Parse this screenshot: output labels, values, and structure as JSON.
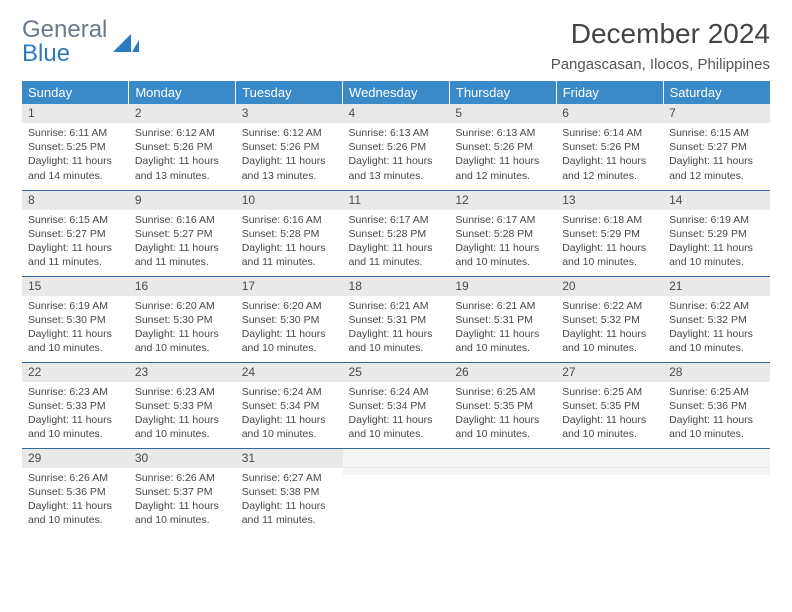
{
  "brand": {
    "word1": "General",
    "word2": "Blue",
    "sail_color": "#2b7bbf",
    "text_gray": "#6b7a8a"
  },
  "title": "December 2024",
  "location": "Pangascasan, Ilocos, Philippines",
  "colors": {
    "header_bg": "#3a8ac9",
    "row_divider": "#336699",
    "daynum_bg": "#e9e9e9"
  },
  "weekdays": [
    "Sunday",
    "Monday",
    "Tuesday",
    "Wednesday",
    "Thursday",
    "Friday",
    "Saturday"
  ],
  "weeks": [
    [
      {
        "n": "1",
        "sr": "6:11 AM",
        "ss": "5:25 PM",
        "dl": "11 hours and 14 minutes."
      },
      {
        "n": "2",
        "sr": "6:12 AM",
        "ss": "5:26 PM",
        "dl": "11 hours and 13 minutes."
      },
      {
        "n": "3",
        "sr": "6:12 AM",
        "ss": "5:26 PM",
        "dl": "11 hours and 13 minutes."
      },
      {
        "n": "4",
        "sr": "6:13 AM",
        "ss": "5:26 PM",
        "dl": "11 hours and 13 minutes."
      },
      {
        "n": "5",
        "sr": "6:13 AM",
        "ss": "5:26 PM",
        "dl": "11 hours and 12 minutes."
      },
      {
        "n": "6",
        "sr": "6:14 AM",
        "ss": "5:26 PM",
        "dl": "11 hours and 12 minutes."
      },
      {
        "n": "7",
        "sr": "6:15 AM",
        "ss": "5:27 PM",
        "dl": "11 hours and 12 minutes."
      }
    ],
    [
      {
        "n": "8",
        "sr": "6:15 AM",
        "ss": "5:27 PM",
        "dl": "11 hours and 11 minutes."
      },
      {
        "n": "9",
        "sr": "6:16 AM",
        "ss": "5:27 PM",
        "dl": "11 hours and 11 minutes."
      },
      {
        "n": "10",
        "sr": "6:16 AM",
        "ss": "5:28 PM",
        "dl": "11 hours and 11 minutes."
      },
      {
        "n": "11",
        "sr": "6:17 AM",
        "ss": "5:28 PM",
        "dl": "11 hours and 11 minutes."
      },
      {
        "n": "12",
        "sr": "6:17 AM",
        "ss": "5:28 PM",
        "dl": "11 hours and 10 minutes."
      },
      {
        "n": "13",
        "sr": "6:18 AM",
        "ss": "5:29 PM",
        "dl": "11 hours and 10 minutes."
      },
      {
        "n": "14",
        "sr": "6:19 AM",
        "ss": "5:29 PM",
        "dl": "11 hours and 10 minutes."
      }
    ],
    [
      {
        "n": "15",
        "sr": "6:19 AM",
        "ss": "5:30 PM",
        "dl": "11 hours and 10 minutes."
      },
      {
        "n": "16",
        "sr": "6:20 AM",
        "ss": "5:30 PM",
        "dl": "11 hours and 10 minutes."
      },
      {
        "n": "17",
        "sr": "6:20 AM",
        "ss": "5:30 PM",
        "dl": "11 hours and 10 minutes."
      },
      {
        "n": "18",
        "sr": "6:21 AM",
        "ss": "5:31 PM",
        "dl": "11 hours and 10 minutes."
      },
      {
        "n": "19",
        "sr": "6:21 AM",
        "ss": "5:31 PM",
        "dl": "11 hours and 10 minutes."
      },
      {
        "n": "20",
        "sr": "6:22 AM",
        "ss": "5:32 PM",
        "dl": "11 hours and 10 minutes."
      },
      {
        "n": "21",
        "sr": "6:22 AM",
        "ss": "5:32 PM",
        "dl": "11 hours and 10 minutes."
      }
    ],
    [
      {
        "n": "22",
        "sr": "6:23 AM",
        "ss": "5:33 PM",
        "dl": "11 hours and 10 minutes."
      },
      {
        "n": "23",
        "sr": "6:23 AM",
        "ss": "5:33 PM",
        "dl": "11 hours and 10 minutes."
      },
      {
        "n": "24",
        "sr": "6:24 AM",
        "ss": "5:34 PM",
        "dl": "11 hours and 10 minutes."
      },
      {
        "n": "25",
        "sr": "6:24 AM",
        "ss": "5:34 PM",
        "dl": "11 hours and 10 minutes."
      },
      {
        "n": "26",
        "sr": "6:25 AM",
        "ss": "5:35 PM",
        "dl": "11 hours and 10 minutes."
      },
      {
        "n": "27",
        "sr": "6:25 AM",
        "ss": "5:35 PM",
        "dl": "11 hours and 10 minutes."
      },
      {
        "n": "28",
        "sr": "6:25 AM",
        "ss": "5:36 PM",
        "dl": "11 hours and 10 minutes."
      }
    ],
    [
      {
        "n": "29",
        "sr": "6:26 AM",
        "ss": "5:36 PM",
        "dl": "11 hours and 10 minutes."
      },
      {
        "n": "30",
        "sr": "6:26 AM",
        "ss": "5:37 PM",
        "dl": "11 hours and 10 minutes."
      },
      {
        "n": "31",
        "sr": "6:27 AM",
        "ss": "5:38 PM",
        "dl": "11 hours and 11 minutes."
      },
      null,
      null,
      null,
      null
    ]
  ],
  "labels": {
    "sunrise": "Sunrise:",
    "sunset": "Sunset:",
    "daylight": "Daylight:"
  }
}
